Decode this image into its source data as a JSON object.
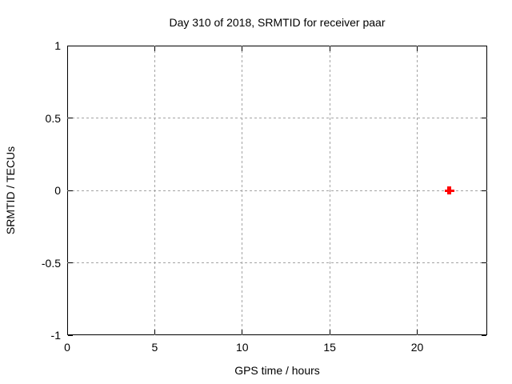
{
  "chart_data": {
    "type": "scatter",
    "title": "Day 310 of 2018, SRMTID for receiver paar",
    "xlabel": "GPS time / hours",
    "ylabel": "SRMTID / TECUs",
    "xlim": [
      0,
      24
    ],
    "ylim": [
      -1,
      1
    ],
    "x_ticks": [
      0,
      5,
      10,
      15,
      20
    ],
    "x_tick_labels": [
      "0",
      "5",
      "10",
      "15",
      "20"
    ],
    "y_ticks": [
      -1,
      -0.5,
      0,
      0.5,
      1
    ],
    "y_tick_labels": [
      "-1",
      "-0.5",
      "0",
      "0.5",
      "1"
    ],
    "grid": true,
    "grid_style": "dashed",
    "legend": "none",
    "series": [
      {
        "name": "SRMTID",
        "marker": "plus",
        "color": "#ff0000",
        "points": [
          {
            "x": 21.85,
            "y": 0.0
          }
        ]
      }
    ],
    "colors": {
      "background": "#ffffff",
      "axis": "#000000",
      "grid": "#a3a3a3",
      "text": "#000000",
      "marker": "#ff0000"
    }
  }
}
